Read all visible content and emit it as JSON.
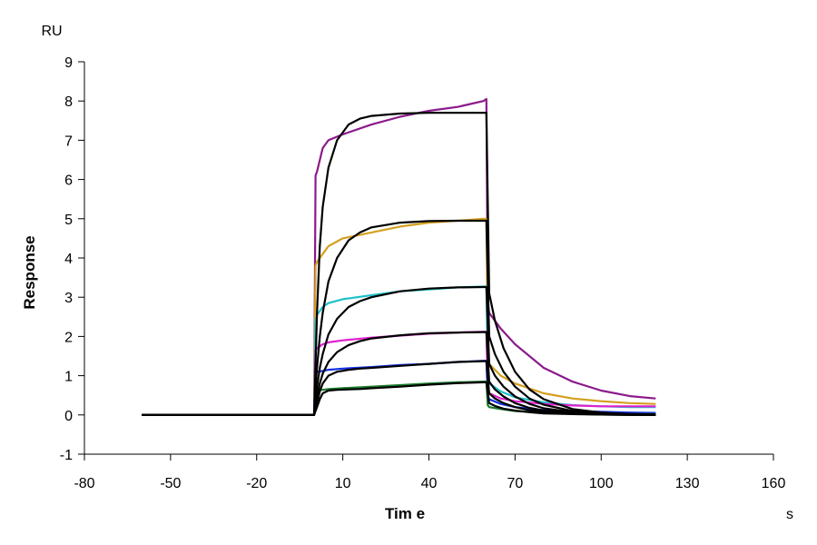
{
  "chart_data": {
    "type": "line",
    "title": "",
    "xlabel": "Tim e",
    "ylabel": "Response",
    "x_unit": "s",
    "y_unit": "RU",
    "xlim": [
      -80,
      160
    ],
    "ylim": [
      -1,
      9
    ],
    "x_ticks": [
      "-80",
      "-50",
      "-20",
      "10",
      "40",
      "70",
      "100",
      "130",
      "160"
    ],
    "y_ticks": [
      "-1",
      "0",
      "1",
      "2",
      "3",
      "4",
      "5",
      "6",
      "7",
      "8",
      "9"
    ],
    "legend": "none",
    "grid": false,
    "series": [
      {
        "color": "#8B1A8B",
        "x": [
          -60,
          -2,
          0,
          0.5,
          1,
          3,
          5,
          10,
          20,
          30,
          40,
          50,
          59,
          60,
          60.5,
          61,
          65,
          70,
          80,
          90,
          100,
          110,
          119
        ],
        "y": [
          0,
          0,
          0,
          6.1,
          6.2,
          6.8,
          7.0,
          7.15,
          7.4,
          7.6,
          7.75,
          7.85,
          8.0,
          8.05,
          2.9,
          2.6,
          2.2,
          1.8,
          1.2,
          0.85,
          0.62,
          0.48,
          0.42
        ]
      },
      {
        "color": "#D4A020",
        "x": [
          -60,
          -2,
          0,
          0.5,
          1,
          3,
          5,
          10,
          20,
          30,
          40,
          50,
          59,
          60,
          60.5,
          61,
          65,
          70,
          80,
          90,
          100,
          110,
          119
        ],
        "y": [
          0,
          0,
          0,
          3.8,
          3.9,
          4.1,
          4.3,
          4.5,
          4.65,
          4.8,
          4.9,
          4.95,
          5.0,
          5.0,
          1.5,
          1.3,
          1.0,
          0.8,
          0.55,
          0.42,
          0.35,
          0.3,
          0.28
        ]
      },
      {
        "color": "#20C0C8",
        "x": [
          -60,
          -2,
          0,
          0.5,
          1,
          3,
          5,
          10,
          20,
          30,
          40,
          50,
          59,
          60,
          60.5,
          61,
          65,
          70,
          80,
          90,
          100,
          110,
          119
        ],
        "y": [
          0,
          0,
          0,
          2.4,
          2.55,
          2.75,
          2.85,
          2.95,
          3.05,
          3.15,
          3.2,
          3.25,
          3.27,
          3.27,
          1.0,
          0.8,
          0.6,
          0.45,
          0.32,
          0.25,
          0.22,
          0.2,
          0.2
        ]
      },
      {
        "color": "#E020D0",
        "x": [
          -60,
          -2,
          0,
          0.5,
          1,
          3,
          5,
          10,
          20,
          30,
          40,
          50,
          59,
          60,
          60.5,
          61,
          65,
          70,
          80,
          90,
          100,
          110,
          119
        ],
        "y": [
          0,
          0,
          0,
          1.65,
          1.7,
          1.8,
          1.85,
          1.9,
          1.97,
          2.02,
          2.07,
          2.1,
          2.12,
          2.12,
          0.7,
          0.55,
          0.42,
          0.35,
          0.28,
          0.24,
          0.22,
          0.22,
          0.22
        ]
      },
      {
        "color": "#1030E0",
        "x": [
          -60,
          -2,
          0,
          0.5,
          1,
          3,
          5,
          10,
          20,
          30,
          40,
          50,
          59,
          60,
          60.5,
          61,
          65,
          70,
          80,
          90,
          100,
          110,
          119
        ],
        "y": [
          0,
          0,
          0,
          1.1,
          1.1,
          1.12,
          1.15,
          1.18,
          1.22,
          1.27,
          1.3,
          1.35,
          1.38,
          1.38,
          0.5,
          0.4,
          0.28,
          0.2,
          0.12,
          0.1,
          0.08,
          0.06,
          0.05
        ]
      },
      {
        "color": "#1A7A2A",
        "x": [
          -60,
          -2,
          0,
          0.5,
          1,
          3,
          5,
          10,
          20,
          30,
          40,
          50,
          59,
          60,
          60.5,
          61,
          65,
          70,
          80,
          90,
          100,
          110,
          119
        ],
        "y": [
          0,
          0,
          0,
          0.62,
          0.63,
          0.64,
          0.66,
          0.68,
          0.72,
          0.76,
          0.8,
          0.83,
          0.85,
          0.85,
          0.25,
          0.2,
          0.15,
          0.1,
          0.06,
          0.04,
          0.03,
          0.02,
          0.02
        ]
      },
      {
        "color": "#000000",
        "x": [
          -60,
          -2,
          0,
          0.5,
          1,
          2,
          3,
          5,
          8,
          12,
          16,
          20,
          30,
          40,
          50,
          59,
          60,
          61,
          63,
          66,
          70,
          75,
          80,
          90,
          100,
          110,
          119
        ],
        "y": [
          0,
          0,
          0,
          1.3,
          2.6,
          4.3,
          5.3,
          6.3,
          7.0,
          7.4,
          7.55,
          7.62,
          7.68,
          7.7,
          7.7,
          7.7,
          7.7,
          3.1,
          2.4,
          1.7,
          1.1,
          0.65,
          0.4,
          0.15,
          0.06,
          0.02,
          0.01
        ]
      },
      {
        "color": "#000000",
        "x": [
          -60,
          -2,
          0,
          0.5,
          1,
          2,
          3,
          5,
          8,
          12,
          16,
          20,
          30,
          40,
          50,
          59,
          60,
          61,
          63,
          66,
          70,
          75,
          80,
          90,
          100,
          110,
          119
        ],
        "y": [
          0,
          0,
          0,
          0.7,
          1.2,
          2.0,
          2.6,
          3.4,
          4.0,
          4.45,
          4.65,
          4.78,
          4.9,
          4.94,
          4.95,
          4.95,
          4.95,
          2.0,
          1.55,
          1.1,
          0.72,
          0.42,
          0.26,
          0.1,
          0.04,
          0.02,
          0.01
        ]
      },
      {
        "color": "#000000",
        "x": [
          -60,
          -2,
          0,
          0.5,
          1,
          2,
          3,
          5,
          8,
          12,
          16,
          20,
          30,
          40,
          50,
          59,
          60,
          61,
          63,
          66,
          70,
          75,
          80,
          90,
          100,
          110,
          119
        ],
        "y": [
          0,
          0,
          0,
          0.4,
          0.7,
          1.2,
          1.55,
          2.05,
          2.45,
          2.75,
          2.9,
          3.0,
          3.15,
          3.22,
          3.25,
          3.26,
          3.26,
          1.3,
          1.0,
          0.72,
          0.47,
          0.28,
          0.17,
          0.07,
          0.03,
          0.01,
          0.0
        ]
      },
      {
        "color": "#000000",
        "x": [
          -60,
          -2,
          0,
          0.5,
          1,
          2,
          3,
          5,
          8,
          12,
          16,
          20,
          30,
          40,
          50,
          59,
          60,
          61,
          63,
          66,
          70,
          75,
          80,
          90,
          100,
          110,
          119
        ],
        "y": [
          0,
          0,
          0,
          0.25,
          0.45,
          0.8,
          1.05,
          1.35,
          1.6,
          1.78,
          1.88,
          1.95,
          2.03,
          2.08,
          2.1,
          2.11,
          2.11,
          0.85,
          0.65,
          0.47,
          0.3,
          0.18,
          0.11,
          0.04,
          0.02,
          0.01,
          0.0
        ]
      },
      {
        "color": "#000000",
        "x": [
          -60,
          -2,
          0,
          0.5,
          1,
          2,
          3,
          5,
          8,
          12,
          16,
          20,
          30,
          40,
          50,
          59,
          60,
          61,
          63,
          66,
          70,
          75,
          80,
          90,
          100,
          110,
          119
        ],
        "y": [
          0,
          0,
          0,
          0.15,
          0.3,
          0.6,
          0.8,
          1.0,
          1.1,
          1.15,
          1.18,
          1.2,
          1.25,
          1.3,
          1.35,
          1.37,
          1.37,
          0.55,
          0.42,
          0.3,
          0.2,
          0.12,
          0.07,
          0.03,
          0.01,
          0.0,
          0.0
        ]
      },
      {
        "color": "#000000",
        "x": [
          -60,
          -2,
          0,
          0.5,
          1,
          2,
          3,
          5,
          8,
          12,
          16,
          20,
          30,
          40,
          50,
          59,
          60,
          61,
          63,
          66,
          70,
          75,
          80,
          90,
          100,
          110,
          119
        ],
        "y": [
          0,
          0,
          0,
          0.1,
          0.2,
          0.4,
          0.55,
          0.62,
          0.64,
          0.65,
          0.66,
          0.68,
          0.72,
          0.77,
          0.81,
          0.83,
          0.83,
          0.3,
          0.23,
          0.16,
          0.11,
          0.07,
          0.04,
          0.02,
          0.01,
          0.0,
          0.0
        ]
      }
    ]
  }
}
